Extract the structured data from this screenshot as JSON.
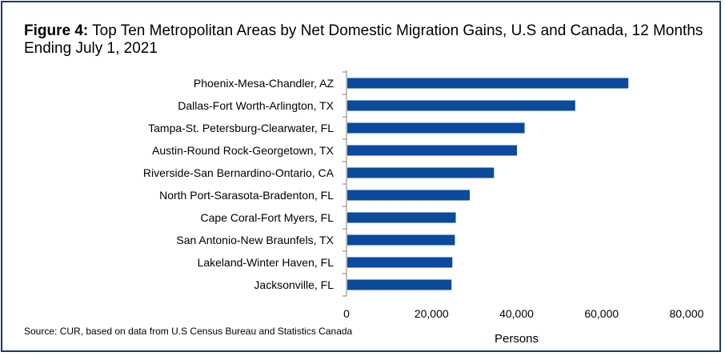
{
  "title_lead": "Figure 4:",
  "title_text": " Top Ten Metropolitan Areas by Net Domestic Migration Gains, U.S and Canada, 12 Months Ending July 1, 2021",
  "source": "Source: CUR, based on data from U.S Census Bureau and Statistics Canada",
  "chart_data": {
    "type": "bar",
    "orientation": "horizontal",
    "xlabel": "Persons",
    "xlim": [
      0,
      80000
    ],
    "x_ticks": [
      0,
      20000,
      40000,
      60000,
      80000
    ],
    "x_tick_labels": [
      "0",
      "20,000",
      "40,000",
      "60,000",
      "80,000"
    ],
    "grid": false,
    "bar_color": "#0b4a9c",
    "categories": [
      "Phoenix-Mesa-Chandler, AZ",
      "Dallas-Fort Worth-Arlington, TX",
      "Tampa-St. Petersburg-Clearwater, FL",
      "Austin-Round Rock-Georgetown, TX",
      "Riverside-San Bernardino-Ontario, CA",
      "North Port-Sarasota-Bradenton, FL",
      "Cape Coral-Fort Myers, FL",
      "San Antonio-New Braunfels, TX",
      "Lakeland-Winter Haven, FL",
      "Jacksonville, FL"
    ],
    "values": [
      66300,
      53800,
      41900,
      40100,
      34700,
      29000,
      25700,
      25500,
      24900,
      24700
    ]
  }
}
